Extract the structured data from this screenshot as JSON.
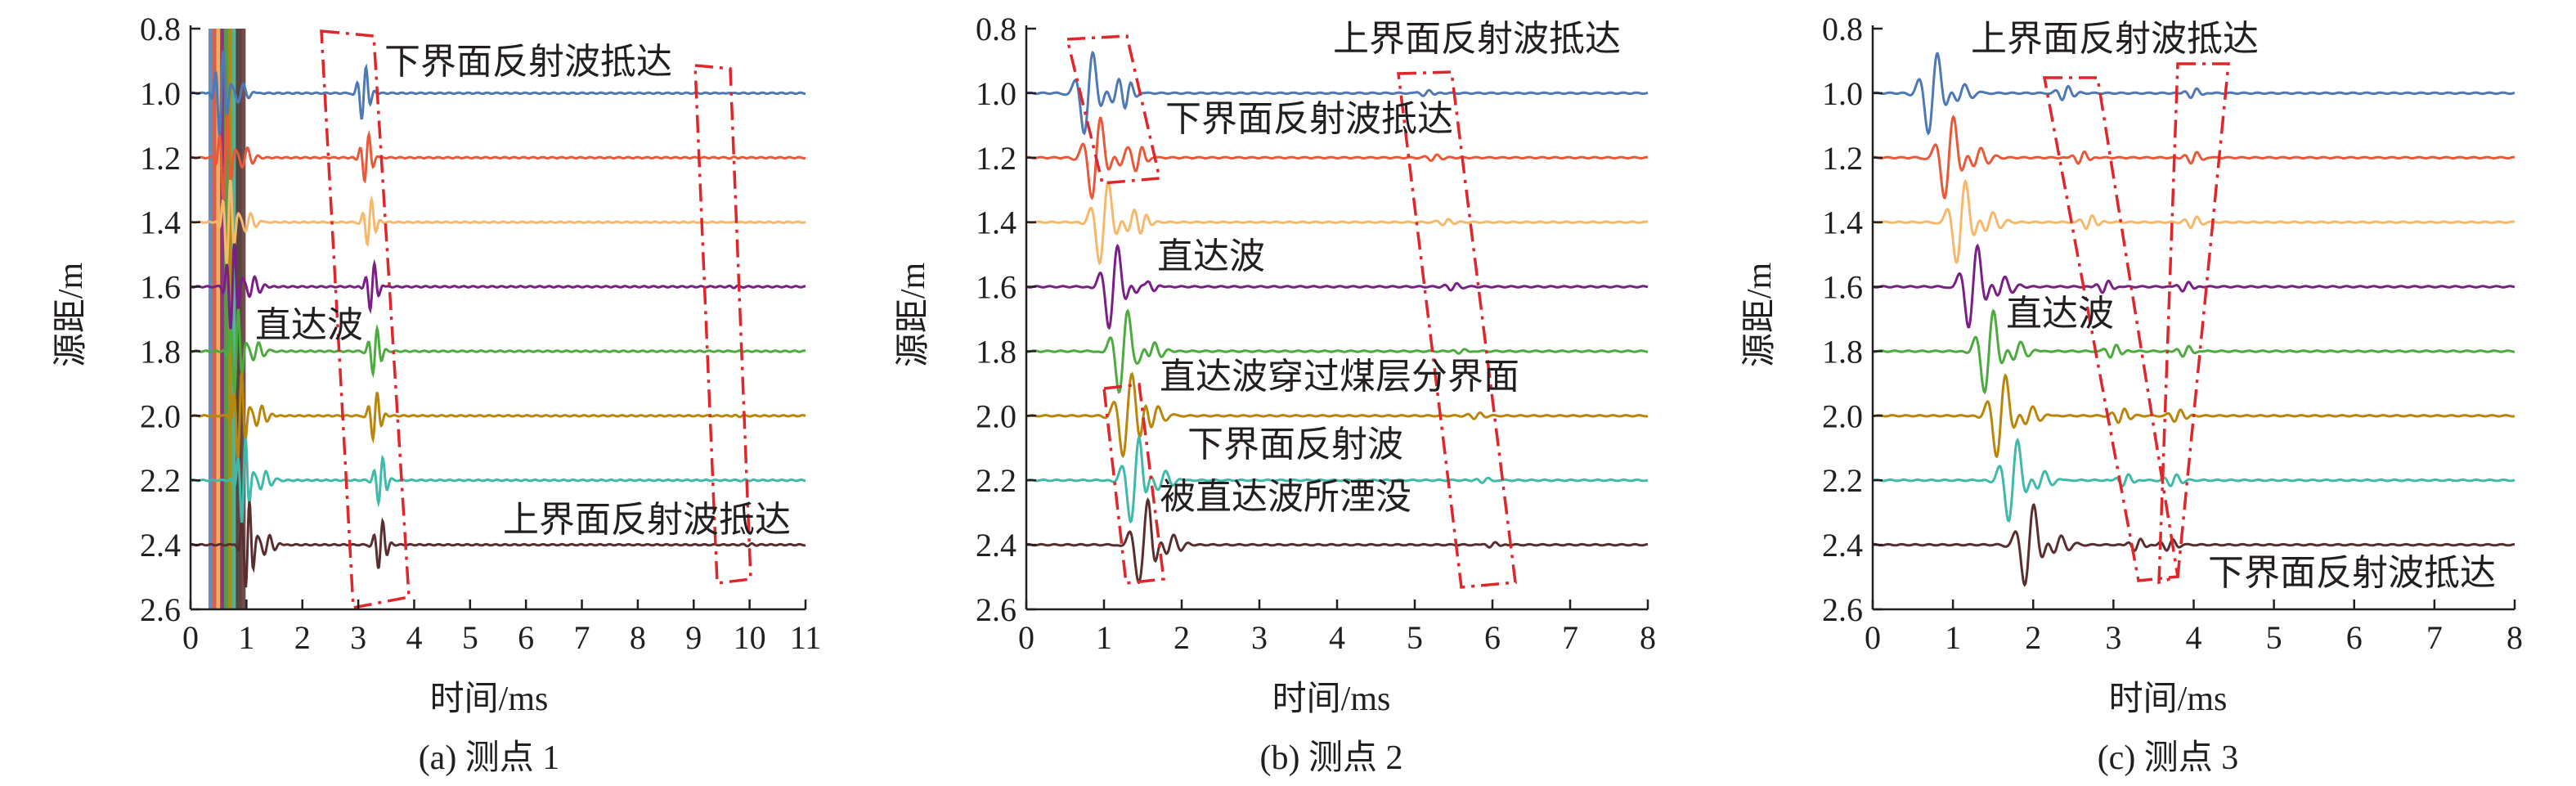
{
  "chart_data": [
    {
      "type": "line",
      "title": "(a) 测点 1",
      "xlabel": "时间/ms",
      "ylabel": "源距/m",
      "xlim": [
        0,
        11
      ],
      "ylim": [
        2.6,
        0.8
      ],
      "x_ticks": [
        "0",
        "1",
        "2",
        "3",
        "4",
        "5",
        "6",
        "7",
        "8",
        "9",
        "10",
        "11"
      ],
      "y_ticks": [
        "0.8",
        "1.0",
        "1.2",
        "1.4",
        "1.6",
        "1.8",
        "2.0",
        "2.2",
        "2.4",
        "2.6"
      ],
      "series": [
        {
          "name": "1.0 m",
          "offset": 1.0,
          "color": "#4e79b4",
          "direct_time": 0.55,
          "reflections": [
            {
              "t": 3.1,
              "a": 1.0
            },
            {
              "t": 9.6,
              "a": 0.03
            }
          ]
        },
        {
          "name": "1.2 m",
          "offset": 1.2,
          "color": "#e8593a",
          "direct_time": 0.62,
          "reflections": [
            {
              "t": 3.15,
              "a": 0.9
            },
            {
              "t": 9.7,
              "a": 0.03
            }
          ]
        },
        {
          "name": "1.4 m",
          "offset": 1.4,
          "color": "#f6b96b",
          "direct_time": 0.68,
          "reflections": [
            {
              "t": 3.2,
              "a": 0.85
            },
            {
              "t": 9.7,
              "a": 0.03
            }
          ]
        },
        {
          "name": "1.6 m",
          "offset": 1.6,
          "color": "#7a1f86",
          "direct_time": 0.75,
          "reflections": [
            {
              "t": 3.25,
              "a": 0.9
            },
            {
              "t": 9.75,
              "a": 0.03
            }
          ]
        },
        {
          "name": "1.8 m",
          "offset": 1.8,
          "color": "#4daa3e",
          "direct_time": 0.82,
          "reflections": [
            {
              "t": 3.3,
              "a": 0.85
            },
            {
              "t": 9.8,
              "a": 0.03
            }
          ]
        },
        {
          "name": "2.0 m",
          "offset": 2.0,
          "color": "#b8860b",
          "direct_time": 0.88,
          "reflections": [
            {
              "t": 3.3,
              "a": 0.9
            },
            {
              "t": 9.85,
              "a": 0.03
            }
          ]
        },
        {
          "name": "2.2 m",
          "offset": 2.2,
          "color": "#3fb9a8",
          "direct_time": 0.95,
          "reflections": [
            {
              "t": 3.4,
              "a": 0.85
            },
            {
              "t": 9.9,
              "a": 0.03
            }
          ]
        },
        {
          "name": "2.4 m",
          "offset": 2.4,
          "color": "#5a2e2e",
          "direct_time": 1.02,
          "reflections": [
            {
              "t": 3.4,
              "a": 0.9
            },
            {
              "t": 10.0,
              "a": 0.03
            }
          ]
        }
      ],
      "annotations": [
        {
          "text": "下界面反射波抵达"
        },
        {
          "text": "直达波"
        },
        {
          "text": "上界面反射波抵达"
        }
      ]
    },
    {
      "type": "line",
      "title": "(b) 测点 2",
      "xlabel": "时间/ms",
      "ylabel": "源距/m",
      "xlim": [
        0,
        8
      ],
      "ylim": [
        2.6,
        0.8
      ],
      "x_ticks": [
        "0",
        "1",
        "2",
        "3",
        "4",
        "5",
        "6",
        "7",
        "8"
      ],
      "y_ticks": [
        "0.8",
        "1.0",
        "1.2",
        "1.4",
        "1.6",
        "1.8",
        "2.0",
        "2.2",
        "2.4",
        "2.6"
      ],
      "series": [
        {
          "name": "1.0 m",
          "offset": 1.0,
          "color": "#4e79b4",
          "direct_time": 0.8,
          "reflections": [
            {
              "t": 1.3,
              "a": 0.45
            },
            {
              "t": 5.15,
              "a": 0.12
            }
          ]
        },
        {
          "name": "1.2 m",
          "offset": 1.2,
          "color": "#e8593a",
          "direct_time": 0.9,
          "reflections": [
            {
              "t": 1.45,
              "a": 0.35
            },
            {
              "t": 5.25,
              "a": 0.1
            }
          ]
        },
        {
          "name": "1.4 m",
          "offset": 1.4,
          "color": "#f6b96b",
          "direct_time": 1.0,
          "reflections": [
            {
              "t": 1.5,
              "a": 0.3
            },
            {
              "t": 5.4,
              "a": 0.1
            }
          ]
        },
        {
          "name": "1.6 m",
          "offset": 1.6,
          "color": "#7a1f86",
          "direct_time": 1.12,
          "reflections": [
            {
              "t": 1.55,
              "a": 0.3
            },
            {
              "t": 5.5,
              "a": 0.12
            }
          ]
        },
        {
          "name": "1.8 m",
          "offset": 1.8,
          "color": "#4daa3e",
          "direct_time": 1.25,
          "reflections": [
            {
              "t": 1.5,
              "a": 0.3
            },
            {
              "t": 5.6,
              "a": 0.1
            }
          ]
        },
        {
          "name": "2.0 m",
          "offset": 2.0,
          "color": "#b8860b",
          "direct_time": 1.3,
          "reflections": [
            {
              "t": 1.5,
              "a": 0.35
            },
            {
              "t": 5.8,
              "a": 0.1
            }
          ]
        },
        {
          "name": "2.2 m",
          "offset": 2.2,
          "color": "#3fb9a8",
          "direct_time": 1.4,
          "reflections": [
            {
              "t": 1.55,
              "a": 0.3
            },
            {
              "t": 5.9,
              "a": 0.1
            }
          ]
        },
        {
          "name": "2.4 m",
          "offset": 2.4,
          "color": "#5a2e2e",
          "direct_time": 1.5,
          "reflections": [
            {
              "t": 1.55,
              "a": 0.35
            },
            {
              "t": 6.0,
              "a": 0.12
            }
          ]
        }
      ],
      "annotations": [
        {
          "text": "上界面反射波抵达"
        },
        {
          "text": "下界面反射波抵达"
        },
        {
          "text": "直达波"
        },
        {
          "text": "直达波穿过煤层分界面"
        },
        {
          "text": "下界面反射波"
        },
        {
          "text": "被直达波所湮没"
        }
      ]
    },
    {
      "type": "line",
      "title": "(c) 测点 3",
      "xlabel": "时间/ms",
      "ylabel": "源距/m",
      "xlim": [
        0,
        8
      ],
      "ylim": [
        2.6,
        0.8
      ],
      "x_ticks": [
        "0",
        "1",
        "2",
        "3",
        "4",
        "5",
        "6",
        "7",
        "8"
      ],
      "y_ticks": [
        "0.8",
        "1.0",
        "1.2",
        "1.4",
        "1.6",
        "1.8",
        "2.0",
        "2.2",
        "2.4",
        "2.6"
      ],
      "series": [
        {
          "name": "1.0 m",
          "offset": 1.0,
          "color": "#4e79b4",
          "direct_time": 0.75,
          "reflections": [
            {
              "t": 2.4,
              "a": 0.25
            },
            {
              "t": 4.0,
              "a": 0.2
            }
          ]
        },
        {
          "name": "1.2 m",
          "offset": 1.2,
          "color": "#e8593a",
          "direct_time": 0.95,
          "reflections": [
            {
              "t": 2.6,
              "a": 0.25
            },
            {
              "t": 4.0,
              "a": 0.22
            }
          ]
        },
        {
          "name": "1.4 m",
          "offset": 1.4,
          "color": "#f6b96b",
          "direct_time": 1.1,
          "reflections": [
            {
              "t": 2.7,
              "a": 0.25
            },
            {
              "t": 4.0,
              "a": 0.2
            }
          ]
        },
        {
          "name": "1.6 m",
          "offset": 1.6,
          "color": "#7a1f86",
          "direct_time": 1.25,
          "reflections": [
            {
              "t": 2.9,
              "a": 0.25
            },
            {
              "t": 3.9,
              "a": 0.2
            }
          ]
        },
        {
          "name": "1.8 m",
          "offset": 1.8,
          "color": "#4daa3e",
          "direct_time": 1.45,
          "reflections": [
            {
              "t": 3.0,
              "a": 0.25
            },
            {
              "t": 3.9,
              "a": 0.22
            }
          ]
        },
        {
          "name": "2.0 m",
          "offset": 2.0,
          "color": "#b8860b",
          "direct_time": 1.6,
          "reflections": [
            {
              "t": 3.1,
              "a": 0.25
            },
            {
              "t": 3.8,
              "a": 0.22
            }
          ]
        },
        {
          "name": "2.2 m",
          "offset": 2.2,
          "color": "#3fb9a8",
          "direct_time": 1.75,
          "reflections": [
            {
              "t": 3.15,
              "a": 0.25
            },
            {
              "t": 3.75,
              "a": 0.2
            }
          ]
        },
        {
          "name": "2.4 m",
          "offset": 2.4,
          "color": "#5a2e2e",
          "direct_time": 1.95,
          "reflections": [
            {
              "t": 3.3,
              "a": 0.25
            },
            {
              "t": 3.7,
              "a": 0.2
            }
          ]
        }
      ],
      "annotations": [
        {
          "text": "上界面反射波抵达"
        },
        {
          "text": "直达波"
        },
        {
          "text": "下界面反射波抵达"
        }
      ]
    }
  ]
}
